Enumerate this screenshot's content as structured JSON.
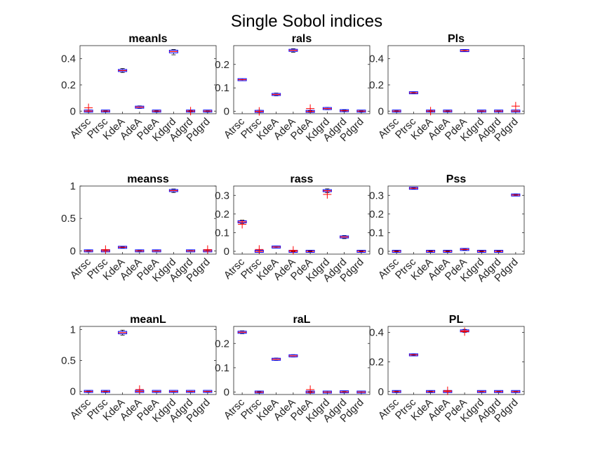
{
  "figure": {
    "title": "Single Sobol indices"
  },
  "colors": {
    "box": "#0000ff",
    "median": "#ff0000",
    "outlier": "#ff0000",
    "whisker": "#000000",
    "axis": "#262626"
  },
  "chart_data": [
    {
      "type": "boxplot",
      "title": "meanls",
      "categories": [
        "Atrsc",
        "Ptrsc",
        "KdeA",
        "AdeA",
        "PdeA",
        "Kdgrd",
        "Adgrd",
        "Pdgrd"
      ],
      "ylim": [
        -0.02,
        0.5
      ],
      "yticks": [
        0,
        0.2,
        0.4
      ],
      "ytick_labels": [
        "0",
        "0.2",
        "0.4"
      ],
      "boxes": [
        {
          "q1": -0.005,
          "median": 0.0,
          "q3": 0.005,
          "whislo": -0.008,
          "whishi": 0.008,
          "outliers": [
            0.025
          ]
        },
        {
          "q1": -0.002,
          "median": 0.0,
          "q3": 0.002,
          "whislo": -0.003,
          "whishi": 0.003,
          "outliers": []
        },
        {
          "q1": 0.302,
          "median": 0.31,
          "q3": 0.318,
          "whislo": 0.295,
          "whishi": 0.325,
          "outliers": []
        },
        {
          "q1": 0.025,
          "median": 0.03,
          "q3": 0.035,
          "whislo": 0.02,
          "whishi": 0.04,
          "outliers": []
        },
        {
          "q1": -0.003,
          "median": 0.0,
          "q3": 0.003,
          "whislo": -0.005,
          "whishi": 0.005,
          "outliers": []
        },
        {
          "q1": 0.445,
          "median": 0.455,
          "q3": 0.465,
          "whislo": 0.43,
          "whishi": 0.47,
          "outliers": []
        },
        {
          "q1": -0.003,
          "median": 0.0,
          "q3": 0.003,
          "whislo": -0.005,
          "whishi": 0.005,
          "outliers": [
            0.0
          ]
        },
        {
          "q1": -0.004,
          "median": 0.0,
          "q3": 0.004,
          "whislo": -0.006,
          "whishi": 0.006,
          "outliers": []
        }
      ]
    },
    {
      "type": "boxplot",
      "title": "rals",
      "categories": [
        "Atrsc",
        "Ptrsc",
        "KdeA",
        "AdeA",
        "PdeA",
        "Kdgrd",
        "Adgrd",
        "Pdgrd"
      ],
      "ylim": [
        -0.01,
        0.28
      ],
      "yticks": [
        0,
        0.1,
        0.2
      ],
      "ytick_labels": [
        "0",
        "0.1",
        "0.2"
      ],
      "boxes": [
        {
          "q1": 0.133,
          "median": 0.135,
          "q3": 0.137,
          "whislo": 0.131,
          "whishi": 0.139,
          "outliers": []
        },
        {
          "q1": -0.003,
          "median": 0.0,
          "q3": 0.003,
          "whislo": -0.005,
          "whishi": 0.005,
          "outliers": [
            0.0
          ]
        },
        {
          "q1": 0.069,
          "median": 0.072,
          "q3": 0.075,
          "whislo": 0.066,
          "whishi": 0.078,
          "outliers": []
        },
        {
          "q1": 0.256,
          "median": 0.26,
          "q3": 0.264,
          "whislo": 0.252,
          "whishi": 0.267,
          "outliers": []
        },
        {
          "q1": -0.002,
          "median": 0.0,
          "q3": 0.002,
          "whislo": -0.003,
          "whishi": 0.003,
          "outliers": [
            0.012
          ]
        },
        {
          "q1": 0.009,
          "median": 0.012,
          "q3": 0.015,
          "whislo": 0.007,
          "whishi": 0.017,
          "outliers": []
        },
        {
          "q1": 0.001,
          "median": 0.003,
          "q3": 0.005,
          "whislo": 0.0,
          "whishi": 0.006,
          "outliers": []
        },
        {
          "q1": -0.001,
          "median": 0.001,
          "q3": 0.003,
          "whislo": -0.002,
          "whishi": 0.004,
          "outliers": []
        }
      ]
    },
    {
      "type": "boxplot",
      "title": "Pls",
      "categories": [
        "Atrsc",
        "Ptrsc",
        "KdeA",
        "AdeA",
        "PdeA",
        "Kdgrd",
        "Adgrd",
        "Pdgrd"
      ],
      "ylim": [
        -0.02,
        0.5
      ],
      "yticks": [
        0,
        0.2,
        0.4
      ],
      "ytick_labels": [
        "0",
        "0.2",
        "0.4"
      ],
      "boxes": [
        {
          "q1": -0.002,
          "median": 0.0,
          "q3": 0.002,
          "whislo": -0.003,
          "whishi": 0.003,
          "outliers": []
        },
        {
          "q1": 0.136,
          "median": 0.14,
          "q3": 0.144,
          "whislo": 0.134,
          "whishi": 0.146,
          "outliers": []
        },
        {
          "q1": -0.002,
          "median": 0.0,
          "q3": 0.002,
          "whislo": -0.003,
          "whishi": 0.003,
          "outliers": [
            0.0
          ]
        },
        {
          "q1": -0.002,
          "median": 0.0,
          "q3": 0.002,
          "whislo": -0.003,
          "whishi": 0.003,
          "outliers": []
        },
        {
          "q1": 0.458,
          "median": 0.462,
          "q3": 0.466,
          "whislo": 0.455,
          "whishi": 0.468,
          "outliers": []
        },
        {
          "q1": -0.001,
          "median": 0.0,
          "q3": 0.001,
          "whislo": -0.002,
          "whishi": 0.002,
          "outliers": []
        },
        {
          "q1": -0.001,
          "median": 0.0,
          "q3": 0.001,
          "whislo": -0.002,
          "whishi": 0.002,
          "outliers": []
        },
        {
          "q1": 0.0,
          "median": 0.0,
          "q3": 0.0,
          "whislo": 0.0,
          "whishi": 0.0,
          "outliers": [
            0.038
          ]
        }
      ]
    },
    {
      "type": "boxplot",
      "title": "meanss",
      "categories": [
        "Atrsc",
        "Ptrsc",
        "KdeA",
        "AdeA",
        "PdeA",
        "Kdgrd",
        "Adgrd",
        "Pdgrd"
      ],
      "ylim": [
        -0.05,
        1.0
      ],
      "yticks": [
        0,
        0.5,
        1
      ],
      "ytick_labels": [
        "0",
        "0.5",
        "1"
      ],
      "boxes": [
        {
          "q1": -0.003,
          "median": 0.0,
          "q3": 0.003,
          "whislo": -0.005,
          "whishi": 0.005,
          "outliers": []
        },
        {
          "q1": -0.002,
          "median": 0.0,
          "q3": 0.002,
          "whislo": -0.003,
          "whishi": 0.003,
          "outliers": [
            0.02
          ]
        },
        {
          "q1": 0.05,
          "median": 0.055,
          "q3": 0.06,
          "whislo": 0.047,
          "whishi": 0.063,
          "outliers": []
        },
        {
          "q1": -0.003,
          "median": 0.0,
          "q3": 0.003,
          "whislo": -0.005,
          "whishi": 0.005,
          "outliers": []
        },
        {
          "q1": -0.002,
          "median": 0.0,
          "q3": 0.002,
          "whislo": -0.003,
          "whishi": 0.003,
          "outliers": []
        },
        {
          "q1": 0.915,
          "median": 0.93,
          "q3": 0.945,
          "whislo": 0.9,
          "whishi": 0.955,
          "outliers": []
        },
        {
          "q1": -0.002,
          "median": 0.0,
          "q3": 0.002,
          "whislo": -0.003,
          "whishi": 0.003,
          "outliers": []
        },
        {
          "q1": -0.002,
          "median": 0.0,
          "q3": 0.002,
          "whislo": -0.003,
          "whishi": 0.003,
          "outliers": [
            0.02
          ]
        }
      ]
    },
    {
      "type": "boxplot",
      "title": "rass",
      "categories": [
        "Atrsc",
        "Ptrsc",
        "KdeA",
        "AdeA",
        "PdeA",
        "Kdgrd",
        "Adgrd",
        "Pdgrd"
      ],
      "ylim": [
        -0.015,
        0.35
      ],
      "yticks": [
        0,
        0.1,
        0.2,
        0.3
      ],
      "ytick_labels": [
        "0",
        "0.1",
        "0.2",
        "0.3"
      ],
      "boxes": [
        {
          "q1": 0.153,
          "median": 0.158,
          "q3": 0.163,
          "whislo": 0.15,
          "whishi": 0.167,
          "outliers": [
            0.145
          ]
        },
        {
          "q1": -0.003,
          "median": 0.0,
          "q3": 0.003,
          "whislo": -0.005,
          "whishi": 0.005,
          "outliers": [
            0.01
          ]
        },
        {
          "q1": 0.02,
          "median": 0.023,
          "q3": 0.026,
          "whislo": 0.018,
          "whishi": 0.028,
          "outliers": []
        },
        {
          "q1": -0.002,
          "median": 0.0,
          "q3": 0.002,
          "whislo": -0.003,
          "whishi": 0.003,
          "outliers": [
            0.005
          ]
        },
        {
          "q1": -0.002,
          "median": 0.0,
          "q3": 0.002,
          "whislo": -0.003,
          "whishi": 0.003,
          "outliers": []
        },
        {
          "q1": 0.32,
          "median": 0.325,
          "q3": 0.33,
          "whislo": 0.315,
          "whishi": 0.335,
          "outliers": [
            0.305
          ]
        },
        {
          "q1": 0.072,
          "median": 0.077,
          "q3": 0.082,
          "whislo": 0.068,
          "whishi": 0.085,
          "outliers": []
        },
        {
          "q1": -0.001,
          "median": 0.0,
          "q3": 0.001,
          "whislo": -0.002,
          "whishi": 0.002,
          "outliers": []
        }
      ]
    },
    {
      "type": "boxplot",
      "title": "Pss",
      "categories": [
        "Atrsc",
        "Ptrsc",
        "KdeA",
        "AdeA",
        "PdeA",
        "Kdgrd",
        "Adgrd",
        "Pdgrd"
      ],
      "ylim": [
        -0.015,
        0.35
      ],
      "yticks": [
        0,
        0.1,
        0.2,
        0.3
      ],
      "ytick_labels": [
        "0",
        "0.1",
        "0.2",
        "0.3"
      ],
      "boxes": [
        {
          "q1": -0.002,
          "median": 0.0,
          "q3": 0.002,
          "whislo": -0.003,
          "whishi": 0.003,
          "outliers": []
        },
        {
          "q1": 0.336,
          "median": 0.338,
          "q3": 0.34,
          "whislo": 0.334,
          "whishi": 0.342,
          "outliers": []
        },
        {
          "q1": -0.002,
          "median": 0.0,
          "q3": 0.002,
          "whislo": -0.003,
          "whishi": 0.003,
          "outliers": []
        },
        {
          "q1": -0.002,
          "median": 0.0,
          "q3": 0.002,
          "whislo": -0.003,
          "whishi": 0.003,
          "outliers": []
        },
        {
          "q1": 0.008,
          "median": 0.01,
          "q3": 0.012,
          "whislo": 0.006,
          "whishi": 0.014,
          "outliers": []
        },
        {
          "q1": -0.002,
          "median": 0.0,
          "q3": 0.002,
          "whislo": -0.003,
          "whishi": 0.003,
          "outliers": []
        },
        {
          "q1": -0.001,
          "median": 0.0,
          "q3": 0.001,
          "whislo": -0.002,
          "whishi": 0.002,
          "outliers": []
        },
        {
          "q1": 0.3,
          "median": 0.302,
          "q3": 0.304,
          "whislo": 0.298,
          "whishi": 0.306,
          "outliers": []
        }
      ]
    },
    {
      "type": "boxplot",
      "title": "meanL",
      "categories": [
        "Atrsc",
        "Ptrsc",
        "KdeA",
        "AdeA",
        "PdeA",
        "Kdgrd",
        "Adgrd",
        "Pdgrd"
      ],
      "ylim": [
        -0.05,
        1.05
      ],
      "yticks": [
        0,
        0.5,
        1
      ],
      "ytick_labels": [
        "0",
        "0.5",
        "1"
      ],
      "boxes": [
        {
          "q1": -0.003,
          "median": 0.0,
          "q3": 0.003,
          "whislo": -0.005,
          "whishi": 0.005,
          "outliers": []
        },
        {
          "q1": -0.003,
          "median": 0.0,
          "q3": 0.003,
          "whislo": -0.005,
          "whishi": 0.005,
          "outliers": []
        },
        {
          "q1": 0.93,
          "median": 0.95,
          "q3": 0.97,
          "whislo": 0.91,
          "whishi": 0.99,
          "outliers": []
        },
        {
          "q1": 0.0,
          "median": 0.0,
          "q3": 0.0,
          "whislo": 0.0,
          "whishi": 0.0,
          "outliers": [
            0.03
          ]
        },
        {
          "q1": -0.002,
          "median": 0.0,
          "q3": 0.002,
          "whislo": -0.003,
          "whishi": 0.003,
          "outliers": []
        },
        {
          "q1": -0.002,
          "median": 0.0,
          "q3": 0.002,
          "whislo": -0.003,
          "whishi": 0.003,
          "outliers": []
        },
        {
          "q1": -0.002,
          "median": 0.0,
          "q3": 0.002,
          "whislo": -0.003,
          "whishi": 0.003,
          "outliers": []
        },
        {
          "q1": -0.002,
          "median": 0.0,
          "q3": 0.002,
          "whislo": -0.003,
          "whishi": 0.003,
          "outliers": []
        }
      ]
    },
    {
      "type": "boxplot",
      "title": "raL",
      "categories": [
        "Atrsc",
        "Ptrsc",
        "KdeA",
        "AdeA",
        "PdeA",
        "Kdgrd",
        "Adgrd",
        "Pdgrd"
      ],
      "ylim": [
        -0.01,
        0.27
      ],
      "yticks": [
        0,
        0.1,
        0.2
      ],
      "ytick_labels": [
        "0",
        "0.1",
        "0.2"
      ],
      "boxes": [
        {
          "q1": 0.243,
          "median": 0.246,
          "q3": 0.249,
          "whislo": 0.24,
          "whishi": 0.252,
          "outliers": []
        },
        {
          "q1": -0.002,
          "median": 0.0,
          "q3": 0.002,
          "whislo": -0.003,
          "whishi": 0.003,
          "outliers": []
        },
        {
          "q1": 0.132,
          "median": 0.135,
          "q3": 0.138,
          "whislo": 0.13,
          "whishi": 0.14,
          "outliers": []
        },
        {
          "q1": 0.146,
          "median": 0.149,
          "q3": 0.152,
          "whislo": 0.144,
          "whishi": 0.154,
          "outliers": []
        },
        {
          "q1": -0.002,
          "median": 0.0,
          "q3": 0.002,
          "whislo": -0.003,
          "whishi": 0.003,
          "outliers": [
            0.01
          ]
        },
        {
          "q1": -0.002,
          "median": 0.0,
          "q3": 0.002,
          "whislo": -0.004,
          "whishi": 0.004,
          "outliers": []
        },
        {
          "q1": -0.001,
          "median": 0.001,
          "q3": 0.003,
          "whislo": -0.003,
          "whishi": 0.004,
          "outliers": []
        },
        {
          "q1": -0.002,
          "median": 0.0,
          "q3": 0.002,
          "whislo": -0.004,
          "whishi": 0.004,
          "outliers": []
        }
      ]
    },
    {
      "type": "boxplot",
      "title": "PL",
      "categories": [
        "Atrsc",
        "Ptrsc",
        "KdeA",
        "AdeA",
        "PdeA",
        "Kdgrd",
        "Adgrd",
        "Pdgrd"
      ],
      "ylim": [
        -0.02,
        0.44
      ],
      "yticks": [
        0,
        0.2,
        0.4
      ],
      "ytick_labels": [
        "0",
        "0.2",
        "0.4"
      ],
      "boxes": [
        {
          "q1": -0.002,
          "median": 0.0,
          "q3": 0.002,
          "whislo": -0.003,
          "whishi": 0.003,
          "outliers": []
        },
        {
          "q1": 0.245,
          "median": 0.248,
          "q3": 0.251,
          "whislo": 0.243,
          "whishi": 0.253,
          "outliers": []
        },
        {
          "q1": -0.002,
          "median": 0.0,
          "q3": 0.002,
          "whislo": -0.003,
          "whishi": 0.003,
          "outliers": []
        },
        {
          "q1": 0.0,
          "median": 0.0,
          "q3": 0.0,
          "whislo": 0.0,
          "whishi": 0.0,
          "outliers": [
            0.005
          ]
        },
        {
          "q1": 0.405,
          "median": 0.41,
          "q3": 0.415,
          "whislo": 0.4,
          "whishi": 0.42,
          "outliers": [
            0.405
          ]
        },
        {
          "q1": -0.001,
          "median": 0.0,
          "q3": 0.001,
          "whislo": -0.002,
          "whishi": 0.002,
          "outliers": []
        },
        {
          "q1": -0.001,
          "median": 0.0,
          "q3": 0.001,
          "whislo": -0.002,
          "whishi": 0.002,
          "outliers": []
        },
        {
          "q1": -0.001,
          "median": 0.0,
          "q3": 0.001,
          "whislo": -0.002,
          "whishi": 0.002,
          "outliers": []
        }
      ]
    }
  ]
}
